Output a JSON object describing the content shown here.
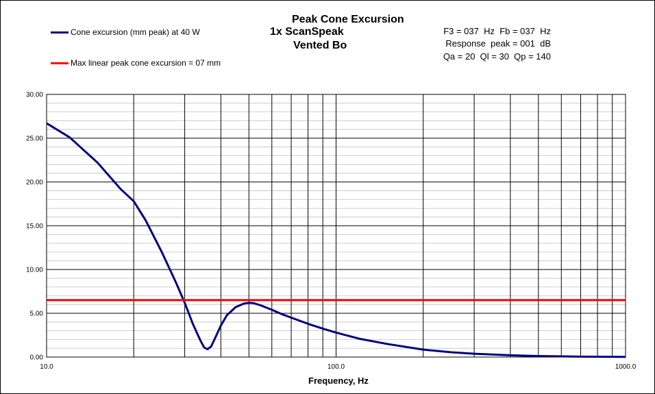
{
  "title_line1": "Peak Cone Excursion",
  "title_line2": "1x ScanSpeak",
  "title_line3": "Vented Bo",
  "info_lines": [
    "F3 = 037  Hz  Fb = 037  Hz",
    "Response  peak = 001  dB",
    "Qa = 20  Ql = 30  Qp = 140"
  ],
  "legend": [
    {
      "label": "Cone excursion (mm peak) at 40 W",
      "color": "#000080"
    },
    {
      "label": "Max linear peak cone excursion = 07 mm",
      "color": "#ff0000"
    }
  ],
  "chart_data": {
    "type": "line",
    "title": "Peak Cone Excursion",
    "xlabel": "Frequency, Hz",
    "ylabel": "",
    "xscale": "log",
    "xlim": [
      10,
      1000
    ],
    "ylim": [
      0,
      30
    ],
    "x_tick_labels": [
      "10.0",
      "100.0",
      "1000.0"
    ],
    "y_tick_labels": [
      "0.00",
      "5.00",
      "10.00",
      "15.00",
      "20.00",
      "25.00",
      "30.00"
    ],
    "grid": true,
    "legend_position": "top-left",
    "series": [
      {
        "name": "Cone excursion (mm peak) at 40 W",
        "color": "#000080",
        "x": [
          10,
          12,
          15,
          18,
          20,
          22,
          25,
          28,
          30,
          32,
          34,
          35,
          36,
          37,
          38,
          40,
          42,
          45,
          48,
          50,
          52,
          55,
          60,
          65,
          70,
          80,
          90,
          100,
          120,
          150,
          200,
          250,
          300,
          400,
          500,
          700,
          1000
        ],
        "y": [
          26.7,
          25.1,
          22.2,
          19.2,
          17.8,
          15.6,
          12.0,
          8.5,
          6.2,
          3.8,
          1.9,
          1.1,
          0.9,
          1.2,
          2.0,
          3.6,
          4.8,
          5.7,
          6.1,
          6.2,
          6.15,
          5.9,
          5.4,
          4.9,
          4.5,
          3.8,
          3.25,
          2.8,
          2.1,
          1.5,
          0.85,
          0.55,
          0.38,
          0.2,
          0.12,
          0.05,
          0.02
        ]
      },
      {
        "name": "Max linear peak cone excursion = 07 mm",
        "color": "#ff0000",
        "x": [
          10,
          1000
        ],
        "y": [
          6.5,
          6.5
        ]
      }
    ]
  }
}
